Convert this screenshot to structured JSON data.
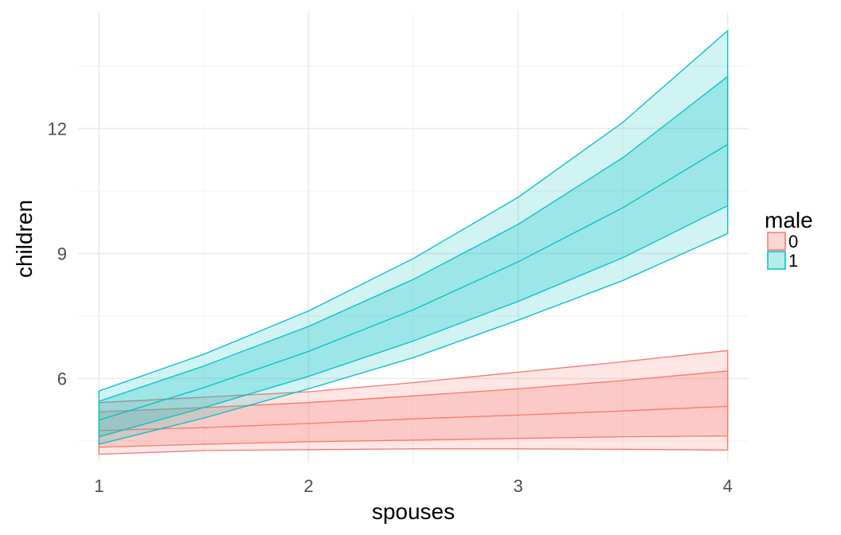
{
  "chart_data": {
    "type": "area",
    "xlabel": "spouses",
    "ylabel": "children",
    "x_ticks": [
      1,
      2,
      3,
      4
    ],
    "y_ticks": [
      6,
      9,
      12
    ],
    "xlim": [
      0.9,
      4.1
    ],
    "ylim": [
      4.0,
      14.8
    ],
    "grid": true,
    "legend": {
      "title": "male",
      "position": "right"
    },
    "x": [
      1,
      1.5,
      2,
      2.5,
      3,
      3.5,
      4
    ],
    "series": [
      {
        "name": "0",
        "color": "#F8766D",
        "fill": "#F8766D",
        "mean": [
          4.75,
          4.82,
          4.92,
          5.03,
          5.12,
          5.22,
          5.33
        ],
        "inner_lower": [
          4.35,
          4.42,
          4.48,
          4.52,
          4.56,
          4.6,
          4.62
        ],
        "inner_upper": [
          5.2,
          5.3,
          5.42,
          5.58,
          5.75,
          5.95,
          6.18
        ],
        "outer_lower": [
          4.18,
          4.27,
          4.29,
          4.31,
          4.31,
          4.3,
          4.28
        ],
        "outer_upper": [
          5.42,
          5.55,
          5.68,
          5.9,
          6.15,
          6.4,
          6.67
        ]
      },
      {
        "name": "1",
        "color": "#00BFC4",
        "fill": "#00BFC4",
        "mean": [
          5.0,
          5.78,
          6.65,
          7.65,
          8.8,
          10.1,
          11.62
        ],
        "inner_lower": [
          4.6,
          5.3,
          6.05,
          6.9,
          7.85,
          8.9,
          10.15
        ],
        "inner_upper": [
          5.45,
          6.3,
          7.25,
          8.38,
          9.7,
          11.3,
          13.25
        ],
        "outer_lower": [
          4.42,
          5.05,
          5.75,
          6.5,
          7.4,
          8.35,
          9.48
        ],
        "outer_upper": [
          5.7,
          6.58,
          7.62,
          8.88,
          10.35,
          12.15,
          14.35
        ]
      }
    ]
  }
}
